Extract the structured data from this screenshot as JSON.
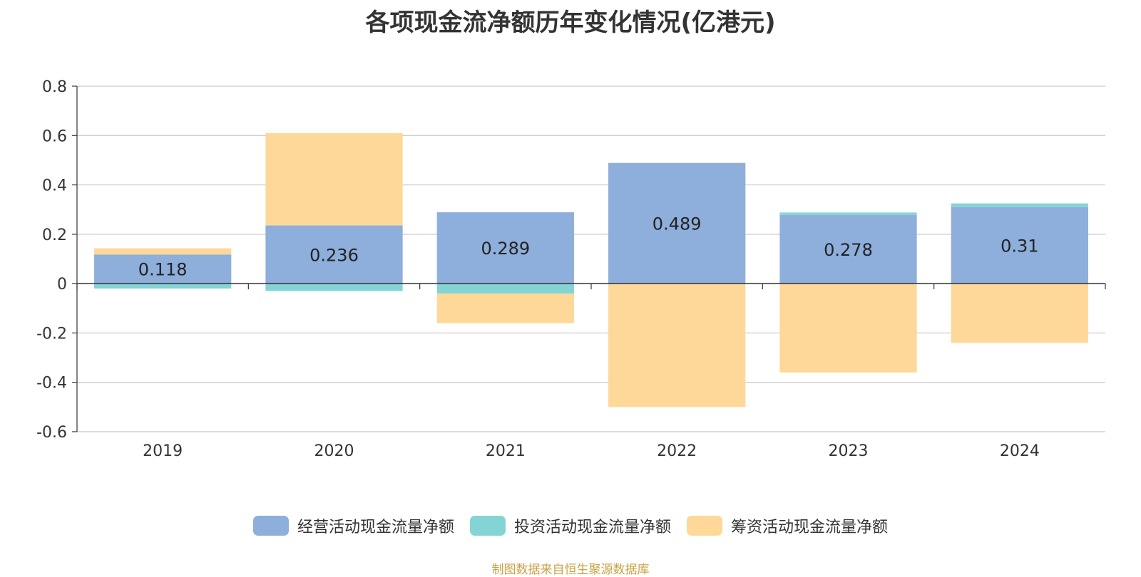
{
  "title": "各项现金流净额历年变化情况(亿港元)",
  "source_note": "制图数据来自恒生聚源数据库",
  "chart_data": {
    "type": "bar",
    "stacked": true,
    "title": "各项现金流净额历年变化情况(亿港元)",
    "categories": [
      "2019",
      "2020",
      "2021",
      "2022",
      "2023",
      "2024"
    ],
    "ylim": [
      -0.6,
      0.8
    ],
    "yticks": [
      -0.6,
      -0.4,
      -0.2,
      0,
      0.2,
      0.4,
      0.6,
      0.8
    ],
    "ytick_labels": [
      "-0.6",
      "-0.4",
      "-0.2",
      "0",
      "0.2",
      "0.4",
      "0.6",
      "0.8"
    ],
    "grid": true,
    "legend_position": "bottom",
    "series": [
      {
        "name": "经营活动现金流量净额",
        "color": "#8eaedb",
        "values": [
          0.118,
          0.236,
          0.289,
          0.489,
          0.278,
          0.31
        ],
        "labels": [
          "0.118",
          "0.236",
          "0.289",
          "0.489",
          "0.278",
          "0.31"
        ]
      },
      {
        "name": "投资活动现金流量净额",
        "color": "#84d4d6",
        "values": [
          -0.02,
          -0.03,
          -0.04,
          0,
          0.01,
          0.015
        ]
      },
      {
        "name": "筹资活动现金流量净额",
        "color": "#fed899",
        "values": [
          0.025,
          0.374,
          -0.12,
          -0.5,
          -0.36,
          -0.24
        ]
      }
    ]
  }
}
